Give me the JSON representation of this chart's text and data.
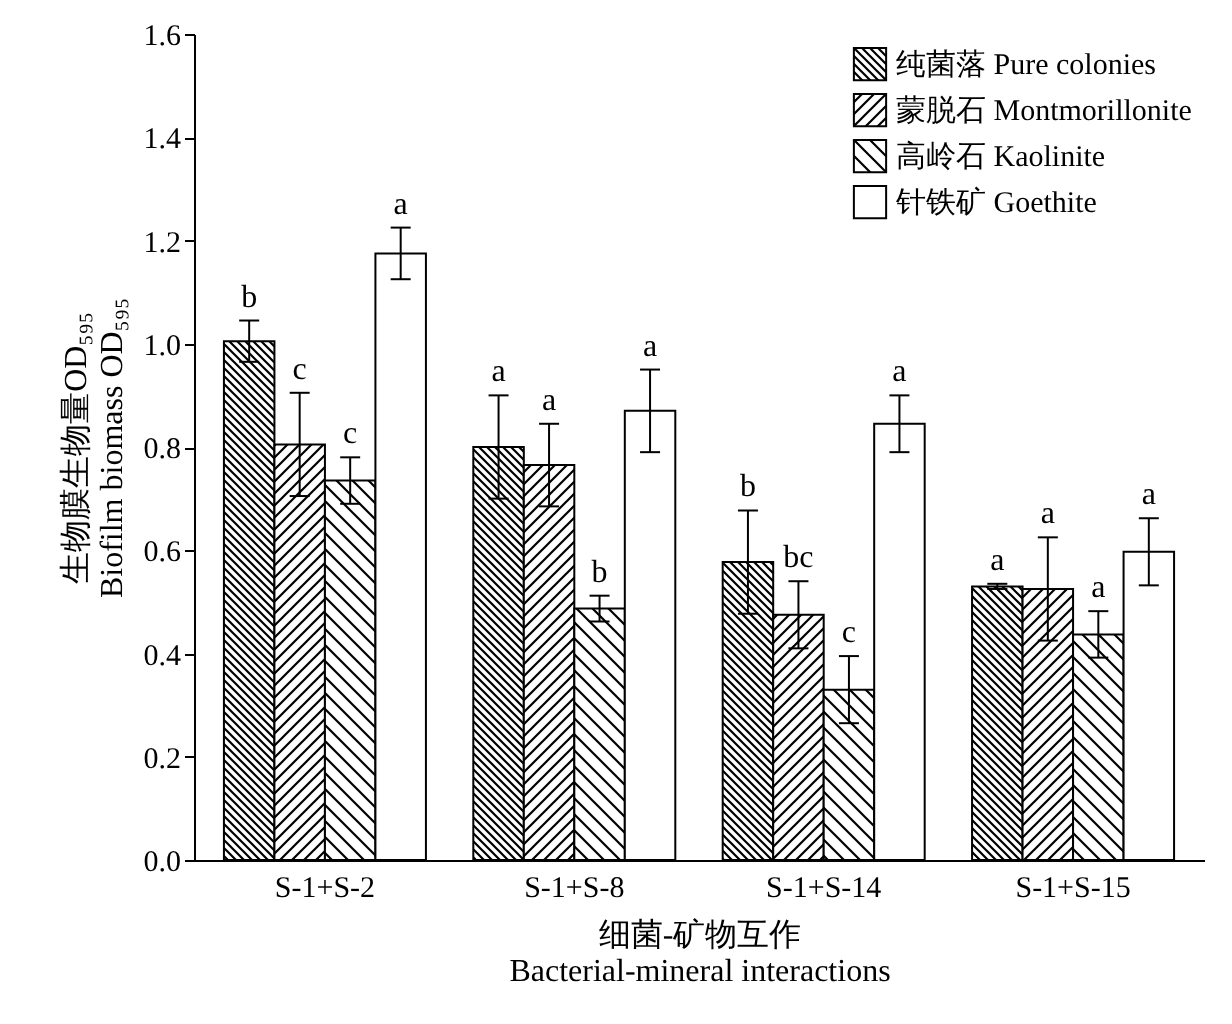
{
  "chart_data": {
    "type": "bar",
    "xlabel": "细菌-矿物互作\nBacterial-mineral interactions",
    "ylabel": "生物膜生物量OD₅₉₅\nBiofilm biomass OD₅₉₅",
    "categories": [
      "S-1+S-2",
      "S-1+S-8",
      "S-1+S-14",
      "S-1+S-15"
    ],
    "series": [
      {
        "name": "纯菌落 Pure colonies",
        "color": "#000000",
        "values": [
          1.005,
          0.8,
          0.577,
          0.53
        ],
        "errors": [
          0.04,
          0.1,
          0.1,
          0.005
        ],
        "value_labels": [
          "b",
          "a",
          "b",
          "a"
        ]
      },
      {
        "name": "蒙脱石 Montmorillonite",
        "color": "#000000",
        "values": [
          0.805,
          0.765,
          0.475,
          0.525
        ],
        "errors": [
          0.1,
          0.08,
          0.065,
          0.1
        ],
        "value_labels": [
          "c",
          "a",
          "bc",
          "a"
        ]
      },
      {
        "name": "高岭石 Kaolinite",
        "color": "#000000",
        "values": [
          0.735,
          0.487,
          0.33,
          0.437
        ],
        "errors": [
          0.045,
          0.025,
          0.065,
          0.045
        ],
        "value_labels": [
          "c",
          "b",
          "c",
          "a"
        ]
      },
      {
        "name": "针铁矿 Goethite",
        "color": "#ffffff",
        "values": [
          1.175,
          0.87,
          0.845,
          0.597
        ],
        "errors": [
          0.05,
          0.08,
          0.055,
          0.065
        ],
        "value_labels": [
          "a",
          "a",
          "a",
          "a"
        ]
      }
    ],
    "ylim": [
      0,
      1.6
    ],
    "yticks": [
      {
        "value": 0,
        "label": "0.0"
      },
      0.2,
      0.4,
      0.6,
      0.8,
      {
        "value": 1,
        "label": "1.0"
      },
      1.2,
      1.4,
      1.6
    ],
    "legend": "top right",
    "grid": false
  }
}
